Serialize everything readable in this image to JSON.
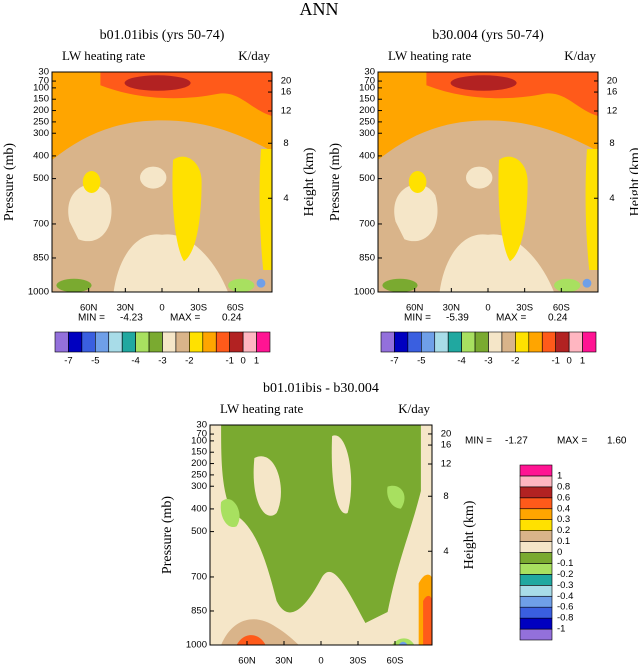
{
  "title": "ANN",
  "chart_data": [
    {
      "type": "contour",
      "title": "b01.01ibis (yrs 50-74)",
      "subtitle_left": "LW heating rate",
      "subtitle_right": "K/day",
      "ylabel": "Pressure (mb)",
      "y2label": "Height (km)",
      "ylim": [
        1000,
        30
      ],
      "yticks": [
        30,
        70,
        100,
        150,
        200,
        250,
        300,
        400,
        500,
        700,
        850,
        1000
      ],
      "y2ticks": [
        4,
        8,
        12,
        16,
        20
      ],
      "xlim": [
        90,
        -90
      ],
      "xticks": [
        {
          "value": 60,
          "label": "60N"
        },
        {
          "value": 30,
          "label": "30N"
        },
        0,
        {
          "value": -30,
          "label": "30S"
        },
        {
          "value": -60,
          "label": "60S"
        }
      ],
      "min_label": "MIN =",
      "min": -4.23,
      "max_label": "MAX =",
      "max": 0.24,
      "colorbar": {
        "colors": [
          "#9370db",
          "#0000c0",
          "#3a5fe0",
          "#6f9fe8",
          "#a8dce8",
          "#20a8a0",
          "#a8e060",
          "#7aaa30",
          "#f5e6c8",
          "#d9b48a",
          "#ffe100",
          "#ffa500",
          "#ff5a1a",
          "#b22222",
          "#ffb6c1",
          "#ff1493"
        ],
        "ticks": [
          -7,
          -5,
          -4,
          -3,
          -2,
          -1,
          0,
          1
        ]
      }
    },
    {
      "type": "contour",
      "title": "b30.004 (yrs 50-74)",
      "subtitle_left": "LW heating rate",
      "subtitle_right": "K/day",
      "ylabel": "Pressure (mb)",
      "y2label": "Height (km)",
      "ylim": [
        1000,
        30
      ],
      "yticks": [
        30,
        70,
        100,
        150,
        200,
        250,
        300,
        400,
        500,
        700,
        850,
        1000
      ],
      "y2ticks": [
        4,
        8,
        12,
        16,
        20
      ],
      "xlim": [
        90,
        -90
      ],
      "xticks": [
        {
          "value": 60,
          "label": "60N"
        },
        {
          "value": 30,
          "label": "30N"
        },
        0,
        {
          "value": -30,
          "label": "30S"
        },
        {
          "value": -60,
          "label": "60S"
        }
      ],
      "min_label": "MIN =",
      "min": -5.39,
      "max_label": "MAX =",
      "max": 0.24,
      "colorbar": {
        "colors": [
          "#9370db",
          "#0000c0",
          "#3a5fe0",
          "#6f9fe8",
          "#a8dce8",
          "#20a8a0",
          "#a8e060",
          "#7aaa30",
          "#f5e6c8",
          "#d9b48a",
          "#ffe100",
          "#ffa500",
          "#ff5a1a",
          "#b22222",
          "#ffb6c1",
          "#ff1493"
        ],
        "ticks": [
          -7,
          -5,
          -4,
          -3,
          -2,
          -1,
          0,
          1
        ]
      }
    },
    {
      "type": "contour",
      "title": "b01.01ibis - b30.004",
      "subtitle_left": "LW heating rate",
      "subtitle_right": "K/day",
      "ylabel": "Pressure (mb)",
      "y2label": "Height (km)",
      "ylim": [
        1000,
        30
      ],
      "yticks": [
        30,
        70,
        100,
        150,
        200,
        250,
        300,
        400,
        500,
        700,
        850,
        1000
      ],
      "y2ticks": [
        4,
        8,
        12,
        16,
        20
      ],
      "xlim": [
        90,
        -90
      ],
      "xticks": [
        {
          "value": 60,
          "label": "60N"
        },
        {
          "value": 30,
          "label": "30N"
        },
        0,
        {
          "value": -30,
          "label": "30S"
        },
        {
          "value": -60,
          "label": "60S"
        }
      ],
      "min_label": "MIN =",
      "min": -1.27,
      "max_label": "MAX =",
      "max": {
        "value": 1.6,
        "label": "1.60"
      },
      "colorbar": {
        "colors": [
          "#9370db",
          "#0000c0",
          "#3a5fe0",
          "#6f9fe8",
          "#a8dce8",
          "#20a8a0",
          "#a8e060",
          "#7aaa30",
          "#f5e6c8",
          "#d9b48a",
          "#ffe100",
          "#ffa500",
          "#ff5a1a",
          "#b22222",
          "#ffb6c1",
          "#ff1493"
        ],
        "ticks": [
          -1,
          -0.8,
          -0.6,
          -0.4,
          -0.3,
          -0.2,
          -0.1,
          0,
          0.1,
          0.2,
          0.3,
          0.4,
          0.6,
          0.8,
          1
        ]
      }
    }
  ]
}
